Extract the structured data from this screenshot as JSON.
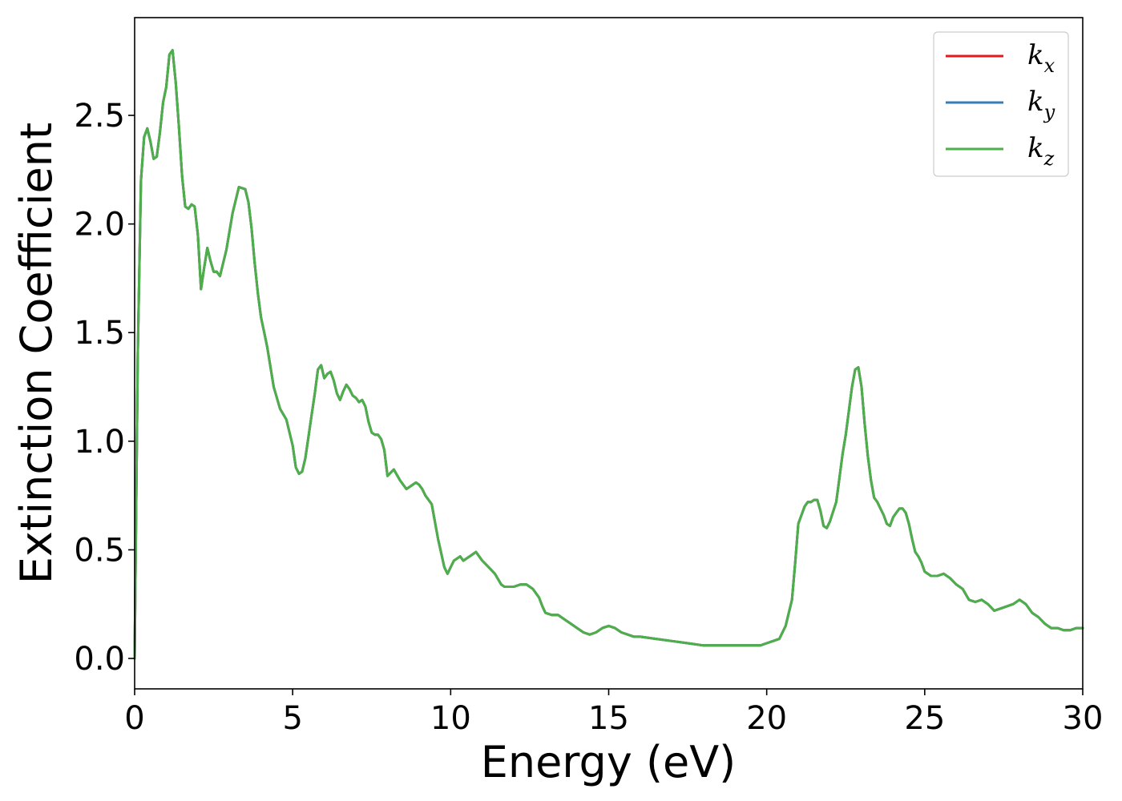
{
  "chart_data": {
    "type": "line",
    "title": "",
    "xlabel": "Energy (eV)",
    "ylabel": "Extinction Coefficient",
    "xlim": [
      0,
      30
    ],
    "ylim": [
      -0.14,
      2.95
    ],
    "xticks": [
      0,
      5,
      10,
      15,
      20,
      25,
      30
    ],
    "xtick_labels": [
      "0",
      "5",
      "10",
      "15",
      "20",
      "25",
      "30"
    ],
    "yticks": [
      0.0,
      0.5,
      1.0,
      1.5,
      2.0,
      2.5
    ],
    "ytick_labels": [
      "0.0",
      "0.5",
      "1.0",
      "1.5",
      "2.0",
      "2.5"
    ],
    "grid": false,
    "legend_position": "top-right",
    "series": [
      {
        "name": "kx",
        "legend_main": "k",
        "legend_sub": "x",
        "color": "#e41a1c"
      },
      {
        "name": "ky",
        "legend_main": "k",
        "legend_sub": "y",
        "color": "#377eb8"
      },
      {
        "name": "kz",
        "legend_main": "k",
        "legend_sub": "z",
        "color": "#4daf4a"
      }
    ],
    "x": [
      0.0,
      0.1,
      0.2,
      0.3,
      0.4,
      0.5,
      0.6,
      0.7,
      0.8,
      0.9,
      1.0,
      1.1,
      1.2,
      1.3,
      1.4,
      1.5,
      1.6,
      1.7,
      1.8,
      1.9,
      2.0,
      2.1,
      2.2,
      2.3,
      2.4,
      2.5,
      2.6,
      2.7,
      2.9,
      3.1,
      3.3,
      3.5,
      3.6,
      3.7,
      3.8,
      3.9,
      4.0,
      4.1,
      4.2,
      4.4,
      4.6,
      4.8,
      5.0,
      5.1,
      5.2,
      5.3,
      5.4,
      5.5,
      5.6,
      5.7,
      5.8,
      5.9,
      6.0,
      6.1,
      6.2,
      6.3,
      6.4,
      6.5,
      6.6,
      6.7,
      6.8,
      6.9,
      7.0,
      7.1,
      7.2,
      7.3,
      7.4,
      7.5,
      7.6,
      7.7,
      7.8,
      7.9,
      8.0,
      8.2,
      8.4,
      8.6,
      8.8,
      8.9,
      9.0,
      9.1,
      9.2,
      9.4,
      9.6,
      9.8,
      9.9,
      10.0,
      10.1,
      10.2,
      10.3,
      10.4,
      10.6,
      10.8,
      11.0,
      11.2,
      11.4,
      11.6,
      11.7,
      11.8,
      12.0,
      12.2,
      12.4,
      12.6,
      12.8,
      12.9,
      13.0,
      13.2,
      13.4,
      13.6,
      13.8,
      14.0,
      14.2,
      14.4,
      14.6,
      14.8,
      15.0,
      15.2,
      15.4,
      15.6,
      15.8,
      16.0,
      16.5,
      17.0,
      17.5,
      18.0,
      18.5,
      19.0,
      19.5,
      19.8,
      20.0,
      20.2,
      20.4,
      20.6,
      20.8,
      20.9,
      21.0,
      21.2,
      21.3,
      21.4,
      21.5,
      21.6,
      21.7,
      21.8,
      21.9,
      22.0,
      22.2,
      22.3,
      22.4,
      22.5,
      22.6,
      22.7,
      22.8,
      22.9,
      23.0,
      23.1,
      23.2,
      23.3,
      23.4,
      23.5,
      23.6,
      23.7,
      23.8,
      23.9,
      24.0,
      24.1,
      24.2,
      24.3,
      24.4,
      24.5,
      24.6,
      24.7,
      24.8,
      24.9,
      25.0,
      25.2,
      25.4,
      25.6,
      25.8,
      26.0,
      26.2,
      26.4,
      26.6,
      26.8,
      27.0,
      27.2,
      27.4,
      27.6,
      27.8,
      28.0,
      28.2,
      28.4,
      28.6,
      28.8,
      29.0,
      29.2,
      29.4,
      29.6,
      29.8,
      30.0
    ],
    "y": [
      0.0,
      1.4,
      2.2,
      2.4,
      2.44,
      2.38,
      2.3,
      2.31,
      2.42,
      2.56,
      2.63,
      2.78,
      2.8,
      2.65,
      2.45,
      2.22,
      2.08,
      2.07,
      2.09,
      2.08,
      1.95,
      1.7,
      1.8,
      1.89,
      1.83,
      1.78,
      1.78,
      1.76,
      1.88,
      2.05,
      2.17,
      2.16,
      2.1,
      1.98,
      1.82,
      1.68,
      1.57,
      1.5,
      1.43,
      1.25,
      1.15,
      1.1,
      0.98,
      0.88,
      0.85,
      0.86,
      0.92,
      1.02,
      1.12,
      1.22,
      1.33,
      1.35,
      1.29,
      1.31,
      1.32,
      1.28,
      1.22,
      1.19,
      1.23,
      1.26,
      1.24,
      1.21,
      1.2,
      1.18,
      1.19,
      1.16,
      1.09,
      1.04,
      1.03,
      1.03,
      1.01,
      0.96,
      0.84,
      0.87,
      0.82,
      0.78,
      0.8,
      0.81,
      0.8,
      0.78,
      0.75,
      0.71,
      0.55,
      0.42,
      0.39,
      0.42,
      0.45,
      0.46,
      0.47,
      0.45,
      0.47,
      0.49,
      0.45,
      0.42,
      0.39,
      0.34,
      0.33,
      0.33,
      0.33,
      0.34,
      0.34,
      0.32,
      0.28,
      0.24,
      0.21,
      0.2,
      0.2,
      0.18,
      0.16,
      0.14,
      0.12,
      0.11,
      0.12,
      0.14,
      0.15,
      0.14,
      0.12,
      0.11,
      0.1,
      0.1,
      0.09,
      0.08,
      0.07,
      0.06,
      0.06,
      0.06,
      0.06,
      0.06,
      0.07,
      0.08,
      0.09,
      0.15,
      0.27,
      0.44,
      0.62,
      0.7,
      0.72,
      0.72,
      0.73,
      0.73,
      0.68,
      0.61,
      0.6,
      0.63,
      0.72,
      0.83,
      0.94,
      1.03,
      1.14,
      1.25,
      1.33,
      1.34,
      1.25,
      1.08,
      0.93,
      0.82,
      0.74,
      0.72,
      0.69,
      0.66,
      0.62,
      0.61,
      0.65,
      0.67,
      0.69,
      0.69,
      0.67,
      0.62,
      0.55,
      0.49,
      0.47,
      0.44,
      0.4,
      0.38,
      0.38,
      0.39,
      0.37,
      0.34,
      0.32,
      0.27,
      0.26,
      0.27,
      0.25,
      0.22,
      0.23,
      0.24,
      0.25,
      0.27,
      0.25,
      0.21,
      0.19,
      0.16,
      0.14,
      0.14,
      0.13,
      0.13,
      0.14,
      0.14
    ]
  }
}
